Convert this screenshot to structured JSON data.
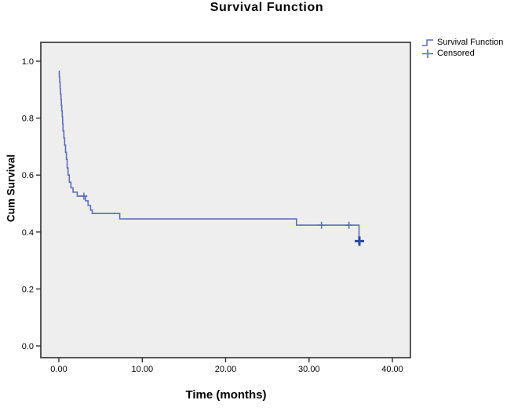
{
  "chart": {
    "title": "Survival Function",
    "xlabel": "Time (months)",
    "ylabel": "Cum Survival"
  },
  "chart_data": {
    "type": "line",
    "subtype": "kaplan-meier-step-function",
    "title": "Survival Function",
    "xlabel": "Time (months)",
    "ylabel": "Cum Survival",
    "xlim": [
      0,
      40
    ],
    "ylim": [
      0.0,
      1.0
    ],
    "grid": false,
    "legend_position": "top-right-outside",
    "x_ticks": [
      {
        "value": 0,
        "label": "0.00"
      },
      {
        "value": 10,
        "label": "10.00"
      },
      {
        "value": 20,
        "label": "20.00"
      },
      {
        "value": 30,
        "label": "30.00"
      },
      {
        "value": 40,
        "label": "40.00"
      }
    ],
    "y_ticks": [
      {
        "value": 0.0,
        "label": "0.0"
      },
      {
        "value": 0.2,
        "label": "0.2"
      },
      {
        "value": 0.4,
        "label": "0.4"
      },
      {
        "value": 0.6,
        "label": "0.6"
      },
      {
        "value": 0.8,
        "label": "0.8"
      },
      {
        "value": 1.0,
        "label": "1.0"
      }
    ],
    "legend": [
      {
        "label": "Survival Function",
        "icon": "step-line-icon"
      },
      {
        "label": "Censored",
        "icon": "plus-mark-icon"
      }
    ],
    "series": [
      {
        "name": "Survival Function",
        "steps": [
          [
            0.0,
            0.965
          ],
          [
            0.05,
            0.945
          ],
          [
            0.1,
            0.925
          ],
          [
            0.15,
            0.905
          ],
          [
            0.2,
            0.885
          ],
          [
            0.25,
            0.865
          ],
          [
            0.3,
            0.845
          ],
          [
            0.35,
            0.825
          ],
          [
            0.4,
            0.805
          ],
          [
            0.45,
            0.78
          ],
          [
            0.5,
            0.755
          ],
          [
            0.6,
            0.73
          ],
          [
            0.7,
            0.705
          ],
          [
            0.8,
            0.68
          ],
          [
            0.9,
            0.655
          ],
          [
            1.0,
            0.625
          ],
          [
            1.1,
            0.6
          ],
          [
            1.25,
            0.575
          ],
          [
            1.45,
            0.555
          ],
          [
            1.7,
            0.54
          ],
          [
            2.2,
            0.526
          ],
          [
            3.2,
            0.51
          ],
          [
            3.5,
            0.493
          ],
          [
            3.8,
            0.477
          ],
          [
            4.0,
            0.465
          ],
          [
            7.3,
            0.446
          ],
          [
            28.5,
            0.424
          ],
          [
            36.0,
            0.368
          ]
        ]
      }
    ],
    "censored_points": [
      {
        "t": 3.0,
        "s": 0.526,
        "bold": false
      },
      {
        "t": 31.5,
        "s": 0.424,
        "bold": false
      },
      {
        "t": 34.8,
        "s": 0.424,
        "bold": false
      },
      {
        "t": 36.05,
        "s": 0.368,
        "bold": true
      }
    ],
    "colors": {
      "line": "#5c6db8",
      "censor": "#5c6db8",
      "censor_bold": "#2c469e",
      "frame": "#2e2e2e",
      "plot_background": "#eeeeee",
      "page_background": "#ffffff",
      "text": "#000000"
    }
  }
}
